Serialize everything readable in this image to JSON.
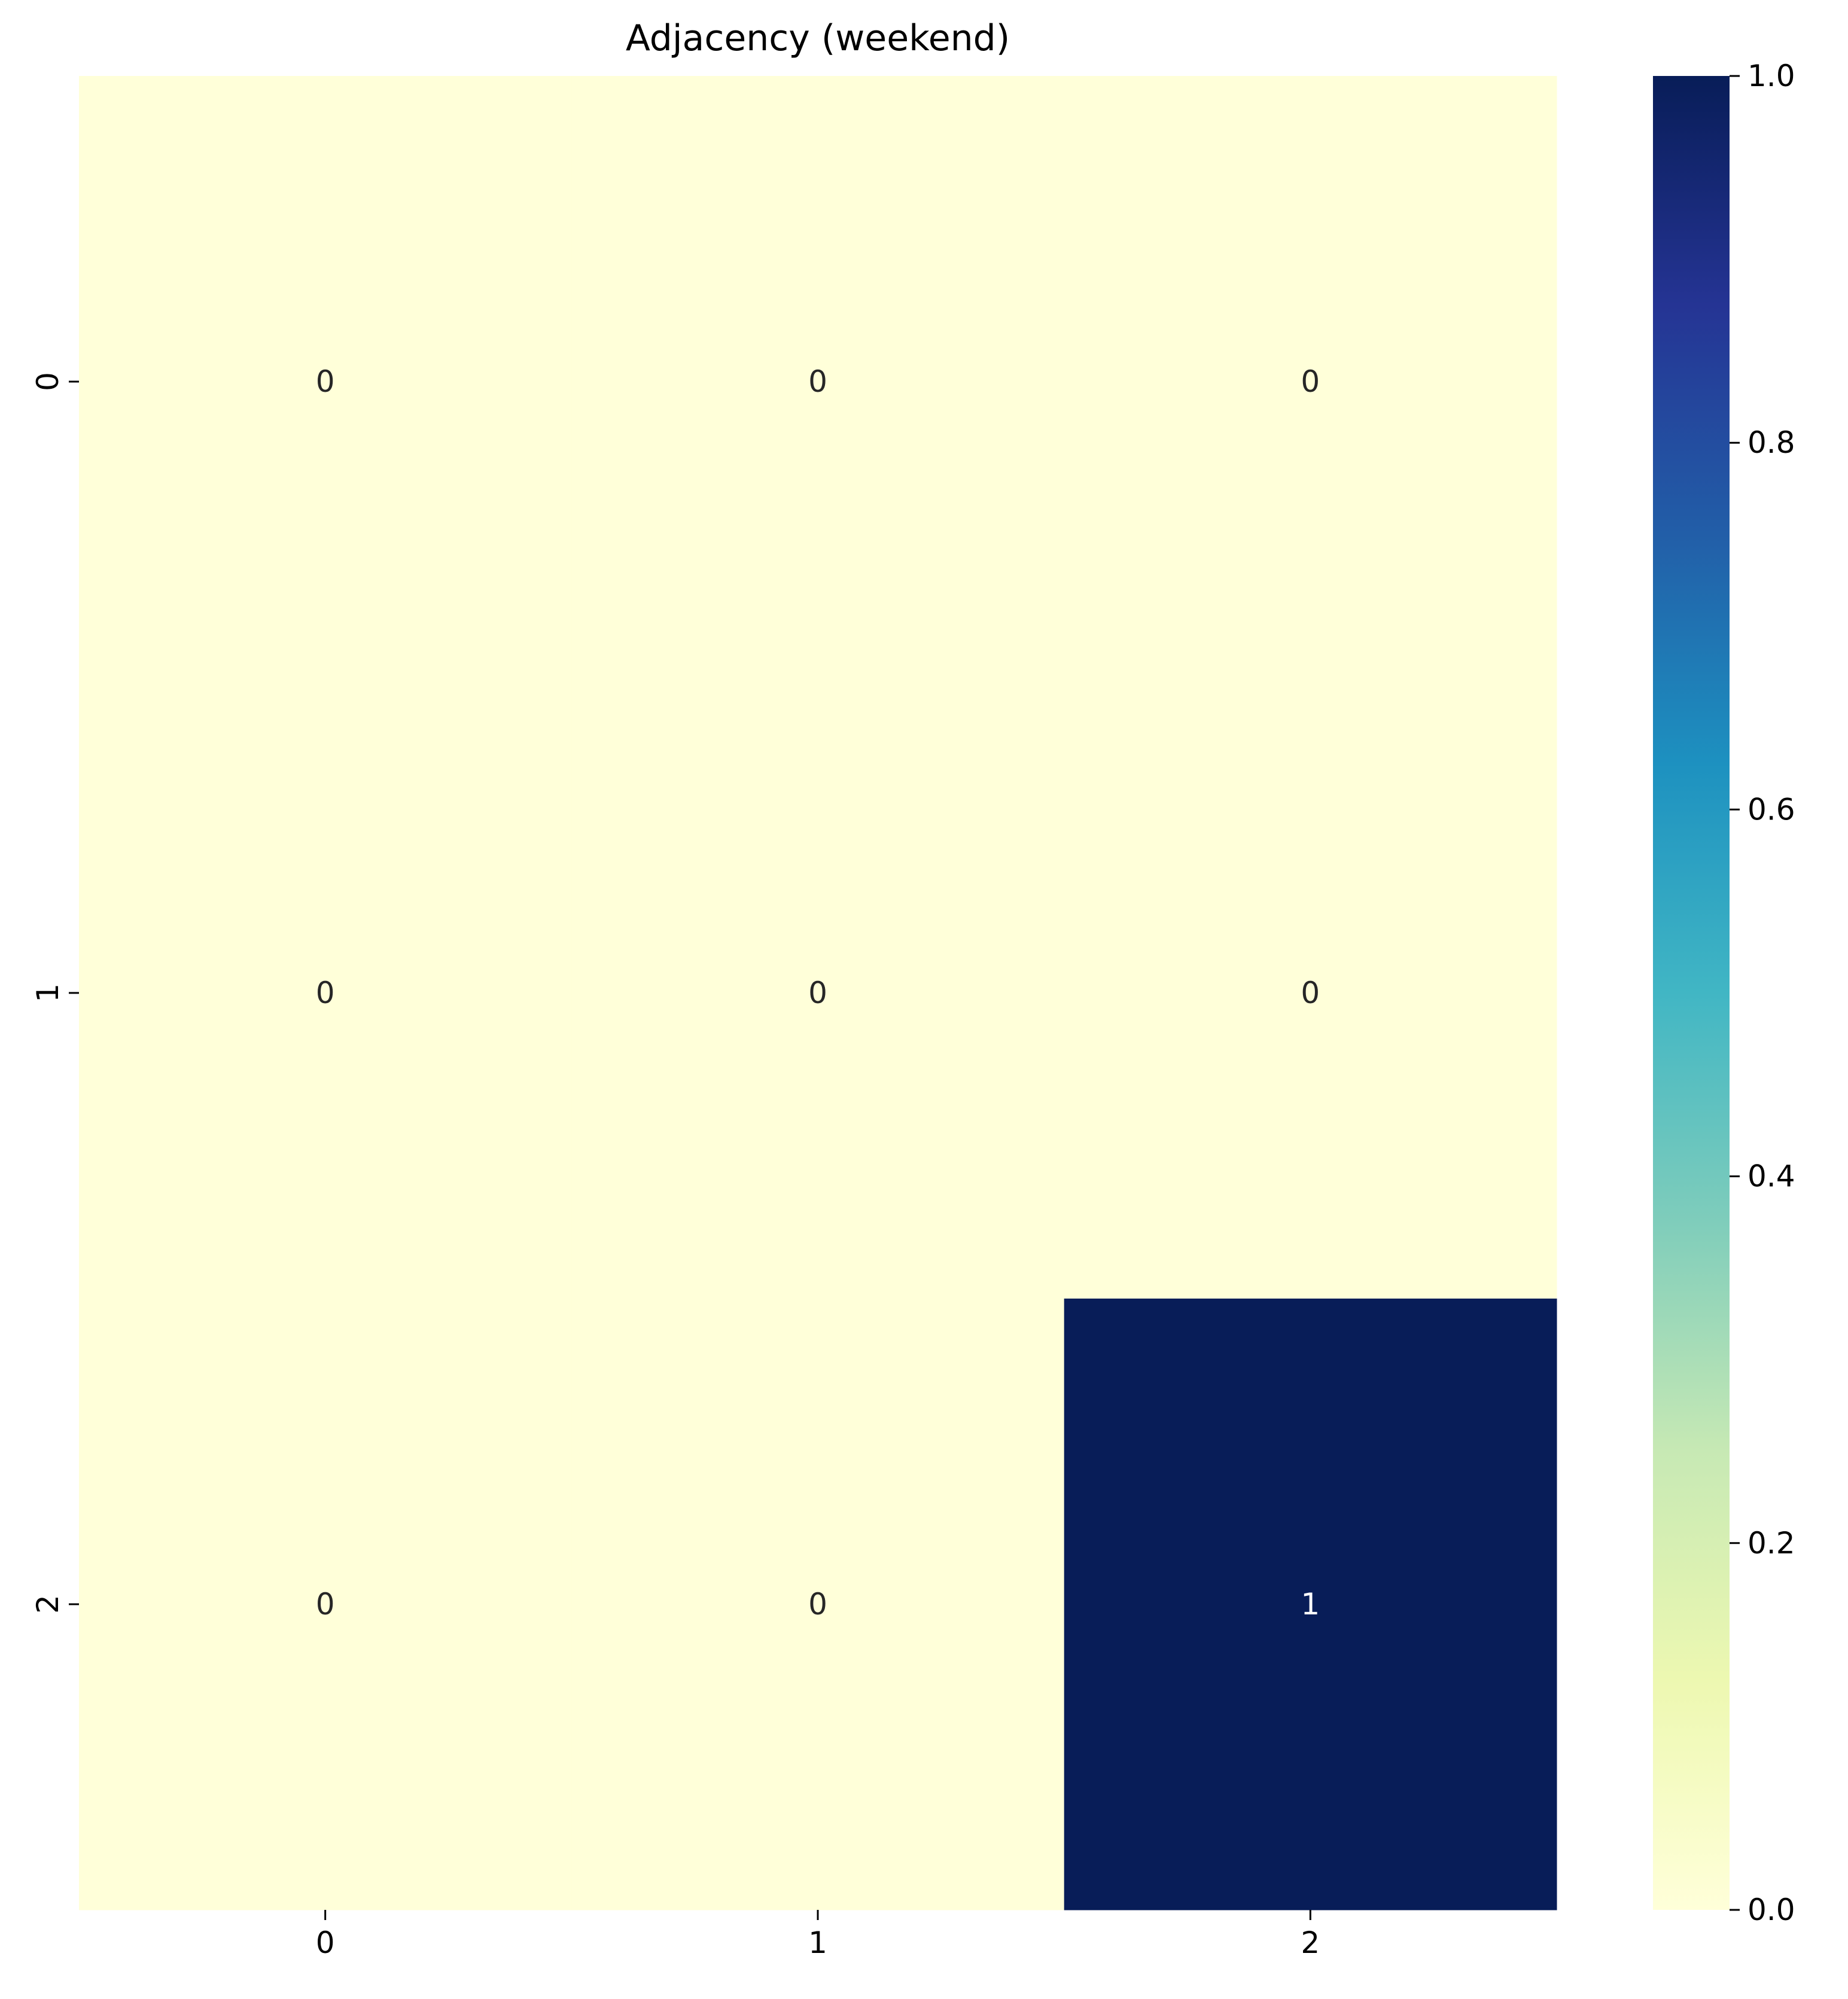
{
  "chart_data": {
    "type": "heatmap",
    "title": "Adjacency (weekend)",
    "xlabel": "",
    "ylabel": "",
    "x_categories": [
      "0",
      "1",
      "2"
    ],
    "y_categories": [
      "0",
      "1",
      "2"
    ],
    "values": [
      [
        0,
        0,
        0
      ],
      [
        0,
        0,
        0
      ],
      [
        0,
        0,
        1
      ]
    ],
    "annotations": [
      [
        "0",
        "0",
        "0"
      ],
      [
        "0",
        "0",
        "0"
      ],
      [
        "0",
        "0",
        "1"
      ]
    ],
    "colormap": "YlGnBu",
    "vmin": 0.0,
    "vmax": 1.0,
    "colorbar": {
      "ticks": [
        "0.0",
        "0.2",
        "0.4",
        "0.6",
        "0.8",
        "1.0"
      ],
      "tick_values": [
        0.0,
        0.2,
        0.4,
        0.6,
        0.8,
        1.0
      ],
      "colors": [
        "#ffffd9",
        "#edf8b1",
        "#c7e9b4",
        "#7fcdbb",
        "#41b6c4",
        "#1d91c0",
        "#225ea8",
        "#253494",
        "#081d58"
      ]
    },
    "grid": false,
    "legend": "colorbar-right"
  }
}
